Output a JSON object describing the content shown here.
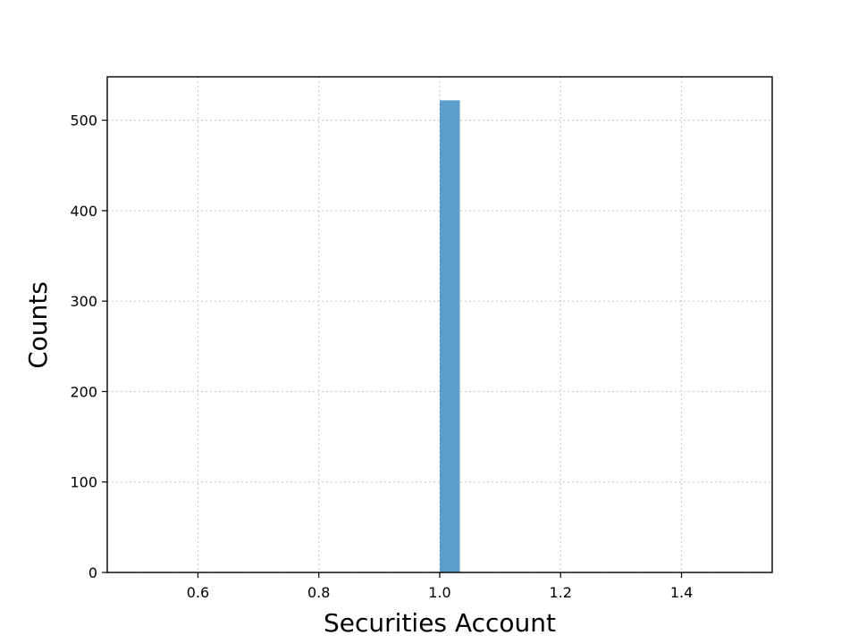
{
  "chart_data": {
    "type": "bar",
    "title": "",
    "xlabel": "Securities Account",
    "ylabel": "Counts",
    "xlim": [
      0.45,
      1.55
    ],
    "ylim": [
      0,
      548
    ],
    "x_ticks": [
      0.6,
      0.8,
      1.0,
      1.2,
      1.4
    ],
    "x_tick_labels": [
      "0.6",
      "0.8",
      "1.0",
      "1.2",
      "1.4"
    ],
    "y_ticks": [
      0,
      100,
      200,
      300,
      400,
      500
    ],
    "y_tick_labels": [
      "0",
      "100",
      "200",
      "300",
      "400",
      "500"
    ],
    "grid": true,
    "bars": [
      {
        "x_start": 1.0,
        "x_end": 1.0333,
        "value": 522
      }
    ],
    "colors": {
      "bar": "#5b9ec9"
    }
  }
}
